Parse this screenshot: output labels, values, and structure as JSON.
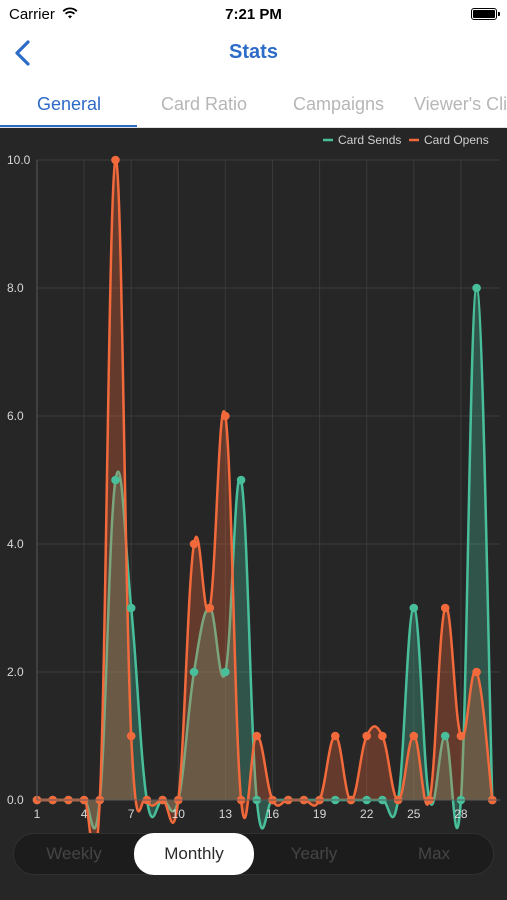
{
  "status_bar": {
    "carrier": "Carrier",
    "time": "7:21 PM"
  },
  "nav": {
    "title": "Stats"
  },
  "tabs": [
    {
      "label": "General",
      "active": true
    },
    {
      "label": "Card Ratio",
      "active": false
    },
    {
      "label": "Campaigns",
      "active": false
    },
    {
      "label": "Viewer's Cli",
      "active": false
    }
  ],
  "chart_data": {
    "type": "area",
    "x": [
      1,
      2,
      3,
      4,
      5,
      6,
      7,
      8,
      9,
      10,
      11,
      12,
      13,
      14,
      15,
      16,
      17,
      18,
      19,
      20,
      21,
      22,
      23,
      24,
      25,
      26,
      27,
      28,
      29,
      30
    ],
    "xticks": [
      "1",
      "4",
      "7",
      "10",
      "13",
      "16",
      "19",
      "22",
      "25",
      "28"
    ],
    "xtick_values": [
      1,
      4,
      7,
      10,
      13,
      16,
      19,
      22,
      25,
      28
    ],
    "yticks": [
      "0.0",
      "2.0",
      "4.0",
      "6.0",
      "8.0",
      "10.0"
    ],
    "ylim": [
      0,
      10
    ],
    "legend_position": "top-right",
    "grid": true,
    "series": [
      {
        "name": "Card Sends",
        "color": "#48bf9a",
        "values": [
          0,
          0,
          0,
          0,
          0,
          5,
          3,
          0,
          0,
          0,
          2,
          3,
          2,
          5,
          0,
          0,
          0,
          0,
          0,
          0,
          0,
          0,
          0,
          0,
          3,
          0,
          1,
          0,
          8,
          0
        ]
      },
      {
        "name": "Card Opens",
        "color": "#f26a3c",
        "values": [
          0,
          0,
          0,
          0,
          0,
          10,
          1,
          0,
          0,
          0,
          4,
          3,
          6,
          0,
          1,
          0,
          0,
          0,
          0,
          1,
          0,
          1,
          1,
          0,
          1,
          0,
          3,
          1,
          2,
          0
        ]
      }
    ]
  },
  "segments": [
    {
      "label": "Weekly",
      "active": false
    },
    {
      "label": "Monthly",
      "active": true
    },
    {
      "label": "Yearly",
      "active": false
    },
    {
      "label": "Max",
      "active": false
    }
  ],
  "colors": {
    "accent": "#2d6bc8",
    "chart_background": "#262626"
  },
  "icons": {
    "back": "chevron-left-icon",
    "wifi": "wifi-icon",
    "battery": "battery-icon"
  }
}
